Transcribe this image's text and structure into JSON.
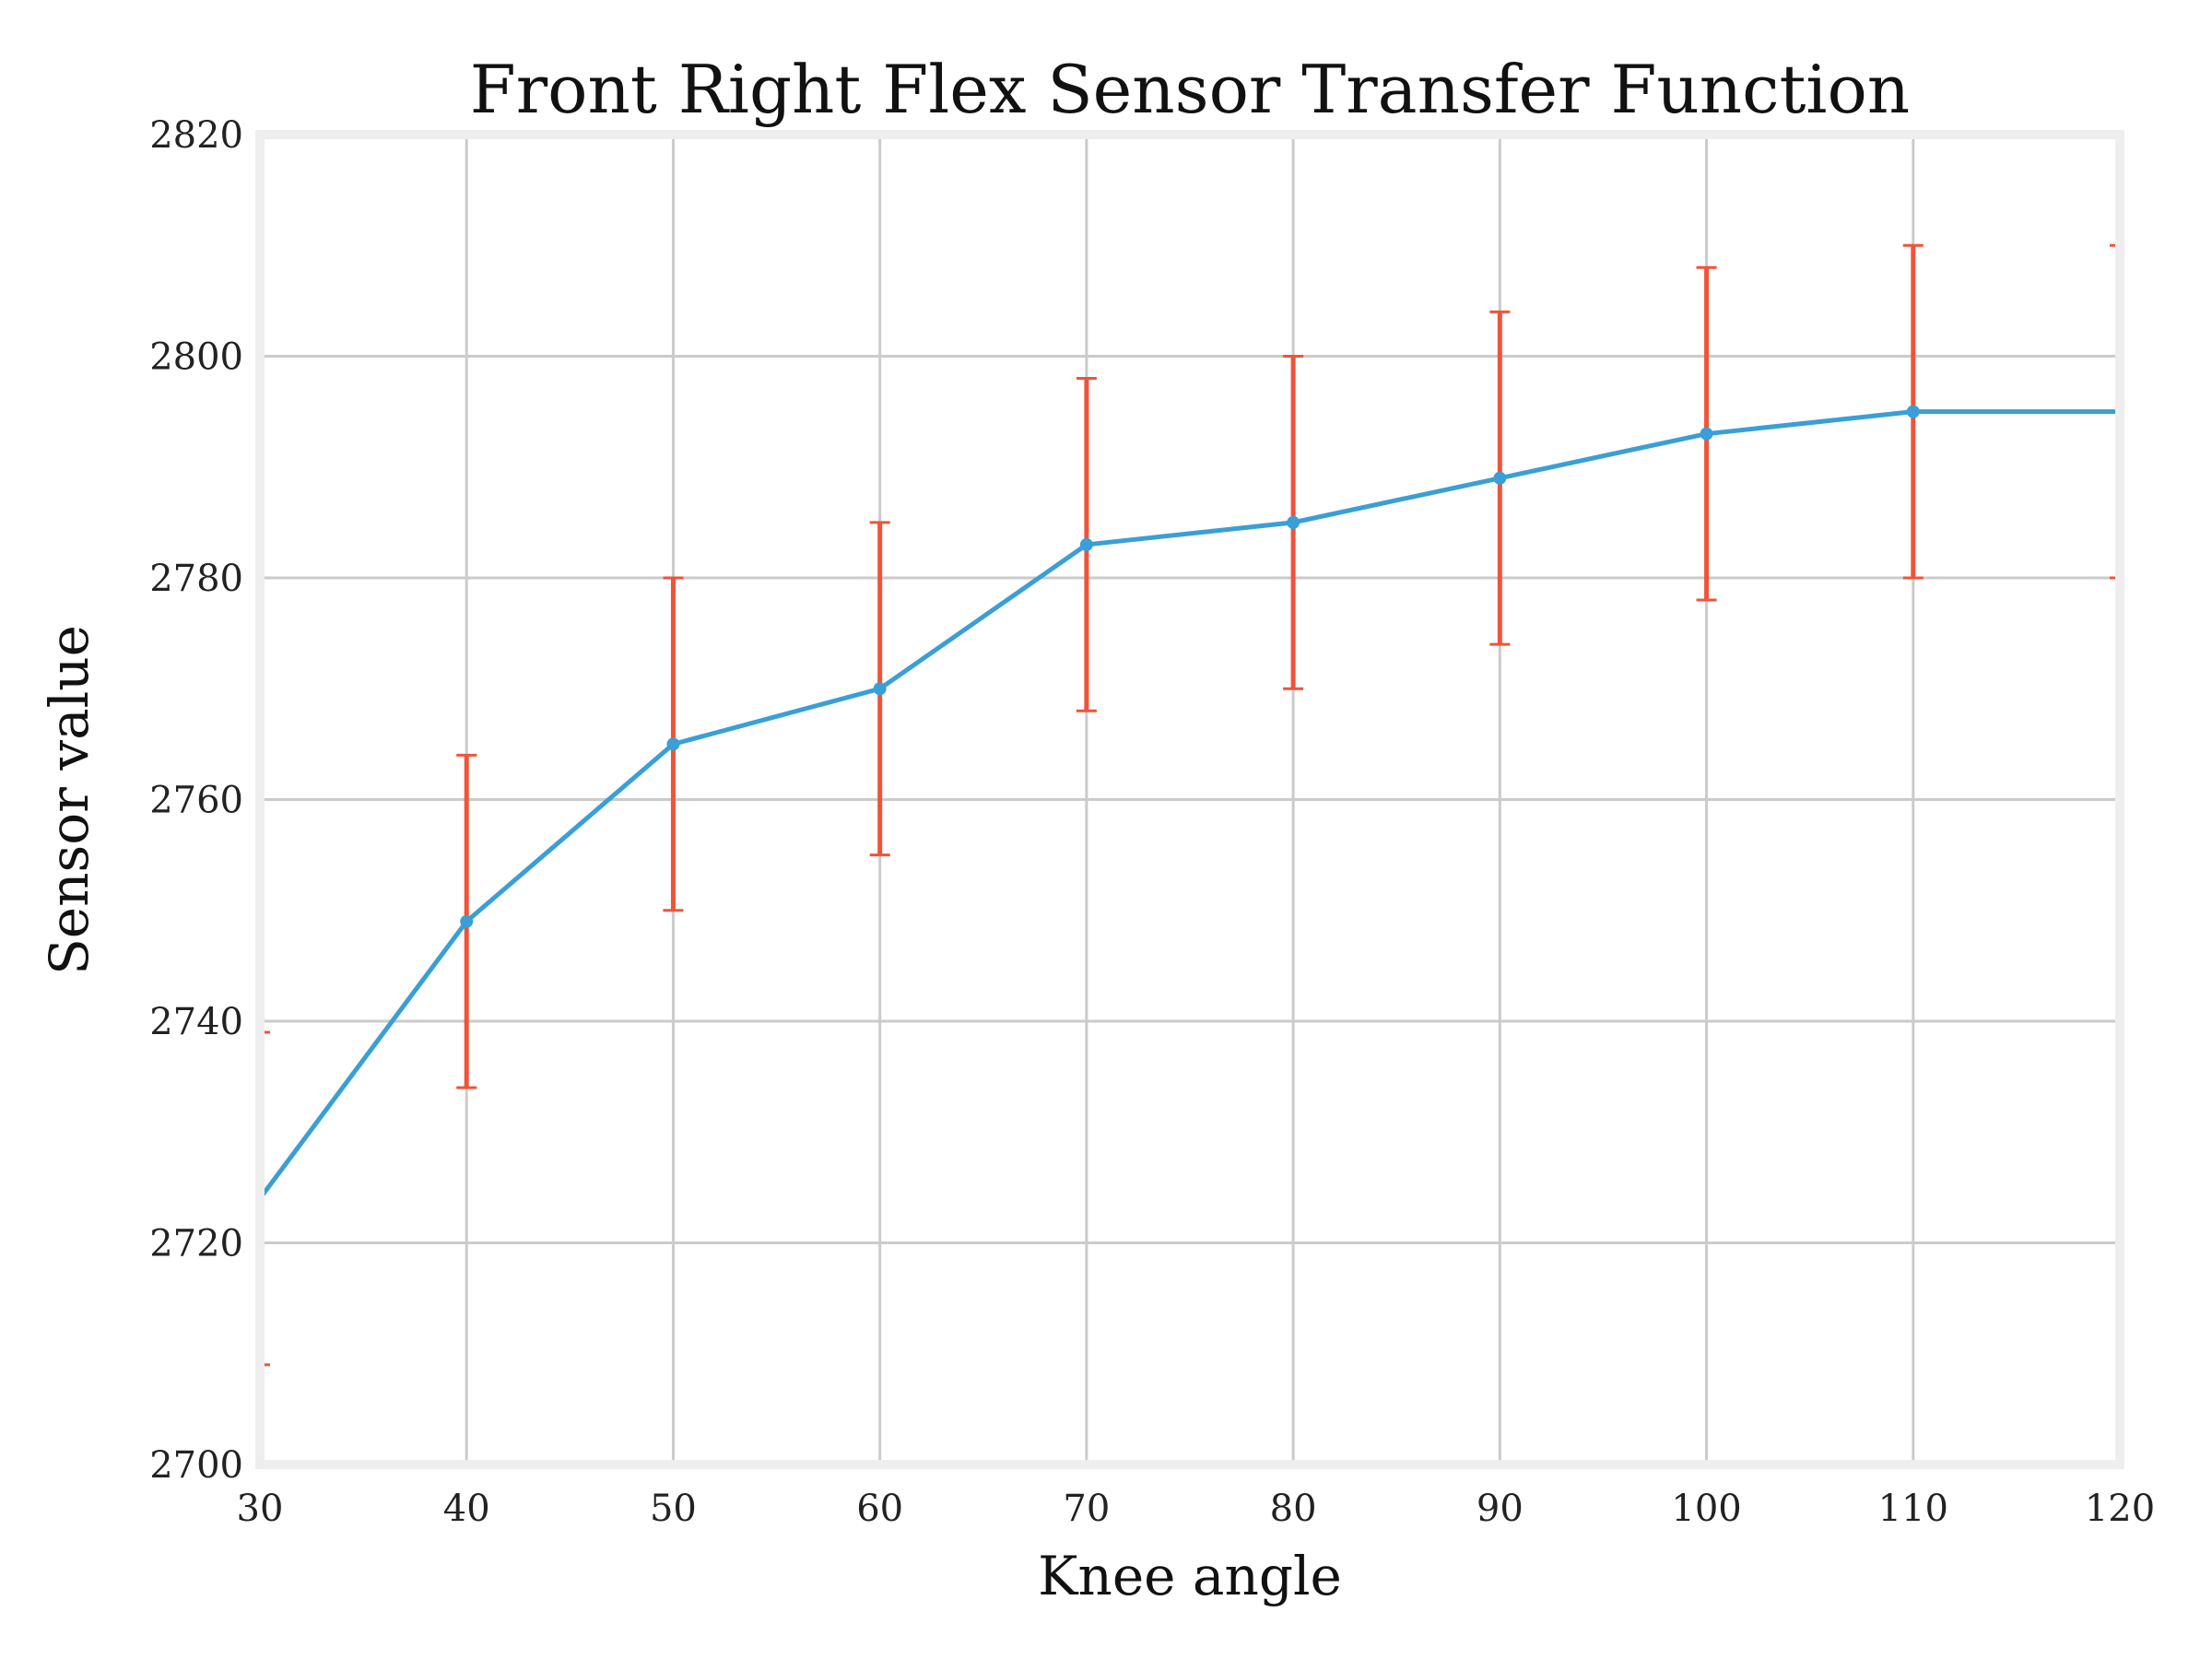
{
  "chart_data": {
    "type": "line",
    "title": "Front Right Flex Sensor Transfer Function",
    "xlabel": "Knee angle",
    "ylabel": "Sensor value",
    "xlim": [
      30,
      120
    ],
    "ylim": [
      2700,
      2820
    ],
    "x_ticks": [
      "30",
      "40",
      "50",
      "60",
      "70",
      "80",
      "90",
      "100",
      "110",
      "120"
    ],
    "y_ticks": [
      "2700",
      "2720",
      "2740",
      "2760",
      "2780",
      "2800",
      "2820"
    ],
    "grid": true,
    "series": [
      {
        "x": [
          30,
          40,
          50,
          60,
          70,
          80,
          90,
          100,
          110,
          120
        ],
        "y": [
          2724,
          2749,
          2765,
          2770,
          2783,
          2785,
          2789,
          2793,
          2795,
          2795
        ],
        "error": [
          15,
          15,
          15,
          15,
          15,
          15,
          15,
          15,
          15,
          15
        ],
        "line_color": "#3a9fd5",
        "error_color": "#f0533a"
      }
    ]
  }
}
